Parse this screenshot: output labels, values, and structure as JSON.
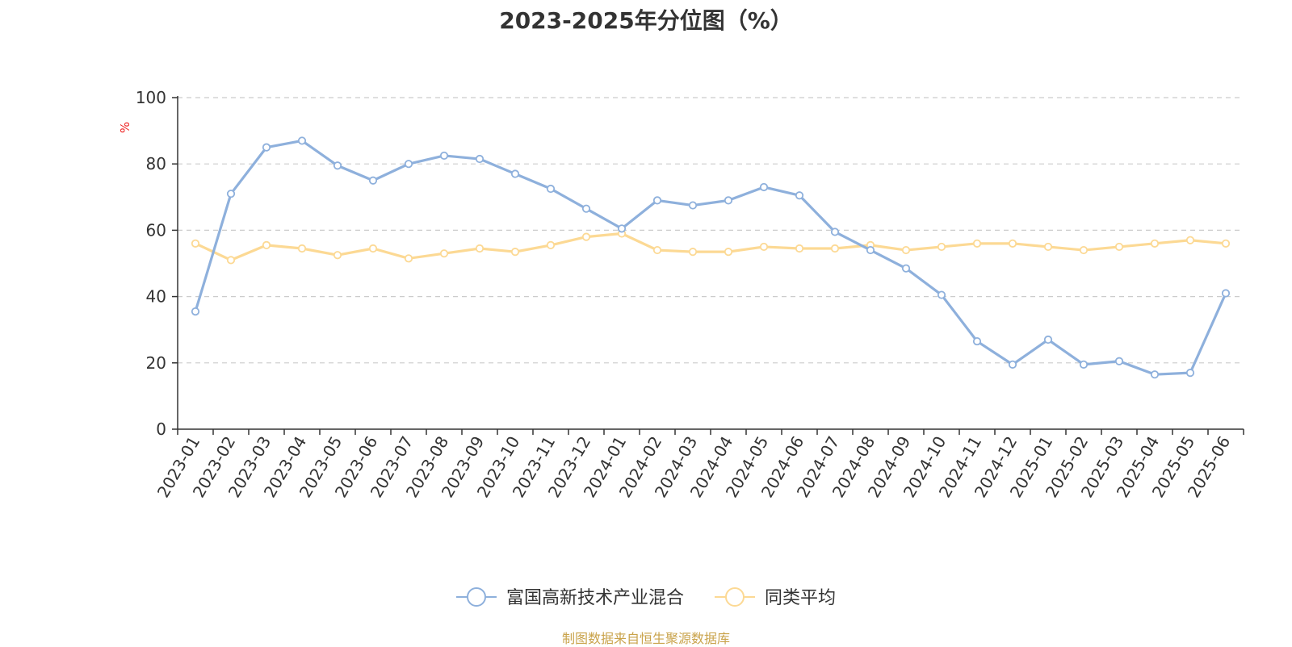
{
  "chart_data": {
    "type": "line",
    "title": "2023-2025年分位图（%）",
    "ylabel": "%",
    "xlabel": "",
    "ylim": [
      0,
      100
    ],
    "yticks": [
      0,
      20,
      40,
      60,
      80,
      100
    ],
    "grid": true,
    "legend_position": "bottom",
    "categories": [
      "2023-01",
      "2023-02",
      "2023-03",
      "2023-04",
      "2023-05",
      "2023-06",
      "2023-07",
      "2023-08",
      "2023-09",
      "2023-10",
      "2023-11",
      "2023-12",
      "2024-01",
      "2024-02",
      "2024-03",
      "2024-04",
      "2024-05",
      "2024-06",
      "2024-07",
      "2024-08",
      "2024-09",
      "2024-10",
      "2024-11",
      "2024-12",
      "2025-01",
      "2025-02",
      "2025-03",
      "2025-04",
      "2025-05",
      "2025-06"
    ],
    "series": [
      {
        "name": "富国高新技术产业混合",
        "color": "#8eb0dc",
        "values": [
          35.5,
          71,
          85,
          87,
          79.5,
          75,
          80,
          82.5,
          81.5,
          77,
          72.5,
          66.5,
          60.5,
          69,
          67.5,
          69,
          73,
          70.5,
          59.5,
          54,
          48.5,
          40.5,
          26.5,
          19.5,
          27,
          19.5,
          20.5,
          16.5,
          17,
          41
        ]
      },
      {
        "name": "同类平均",
        "color": "#fcd994",
        "values": [
          56,
          51,
          55.5,
          54.5,
          52.5,
          54.5,
          51.5,
          53,
          54.5,
          53.5,
          55.5,
          58,
          59,
          54,
          53.5,
          53.5,
          55,
          54.5,
          54.5,
          55.5,
          54,
          55,
          56,
          56,
          55,
          54,
          55,
          56,
          57,
          56
        ]
      }
    ]
  },
  "footer": {
    "source": "制图数据来自恒生聚源数据库"
  }
}
